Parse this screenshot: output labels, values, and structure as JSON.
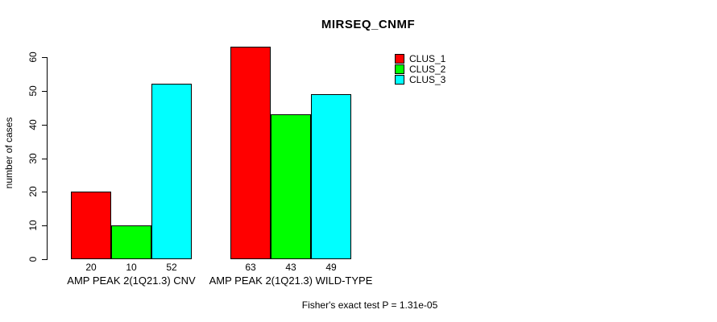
{
  "title": "MIRSEQ_CNMF",
  "y_axis_label": "number of cases",
  "footer": "Fisher's exact test P = 1.31e-05",
  "colors": {
    "clus_1": "#FF0000",
    "clus_2": "#00FF00",
    "clus_3": "#00FFFF",
    "axis": "#000000",
    "background": "#FFFFFF"
  },
  "chart_data": {
    "type": "bar",
    "title": "MIRSEQ_CNMF",
    "xlabel": "",
    "ylabel": "number of cases",
    "ylim": [
      0,
      60
    ],
    "yticks": [
      0,
      10,
      20,
      30,
      40,
      50,
      60
    ],
    "categories": [
      "AMP PEAK 2(1Q21.3) CNV",
      "AMP PEAK 2(1Q21.3) WILD-TYPE"
    ],
    "series": [
      {
        "name": "CLUS_1",
        "color": "#FF0000",
        "values": [
          20,
          63
        ]
      },
      {
        "name": "CLUS_2",
        "color": "#00FF00",
        "values": [
          10,
          43
        ]
      },
      {
        "name": "CLUS_3",
        "color": "#00FFFF",
        "values": [
          52,
          49
        ]
      }
    ],
    "bar_value_labels": [
      [
        "20",
        "10",
        "52"
      ],
      [
        "63",
        "43",
        "49"
      ]
    ],
    "legend_position": "top-right",
    "grid": false,
    "annotation": "Fisher's exact test P = 1.31e-05"
  }
}
